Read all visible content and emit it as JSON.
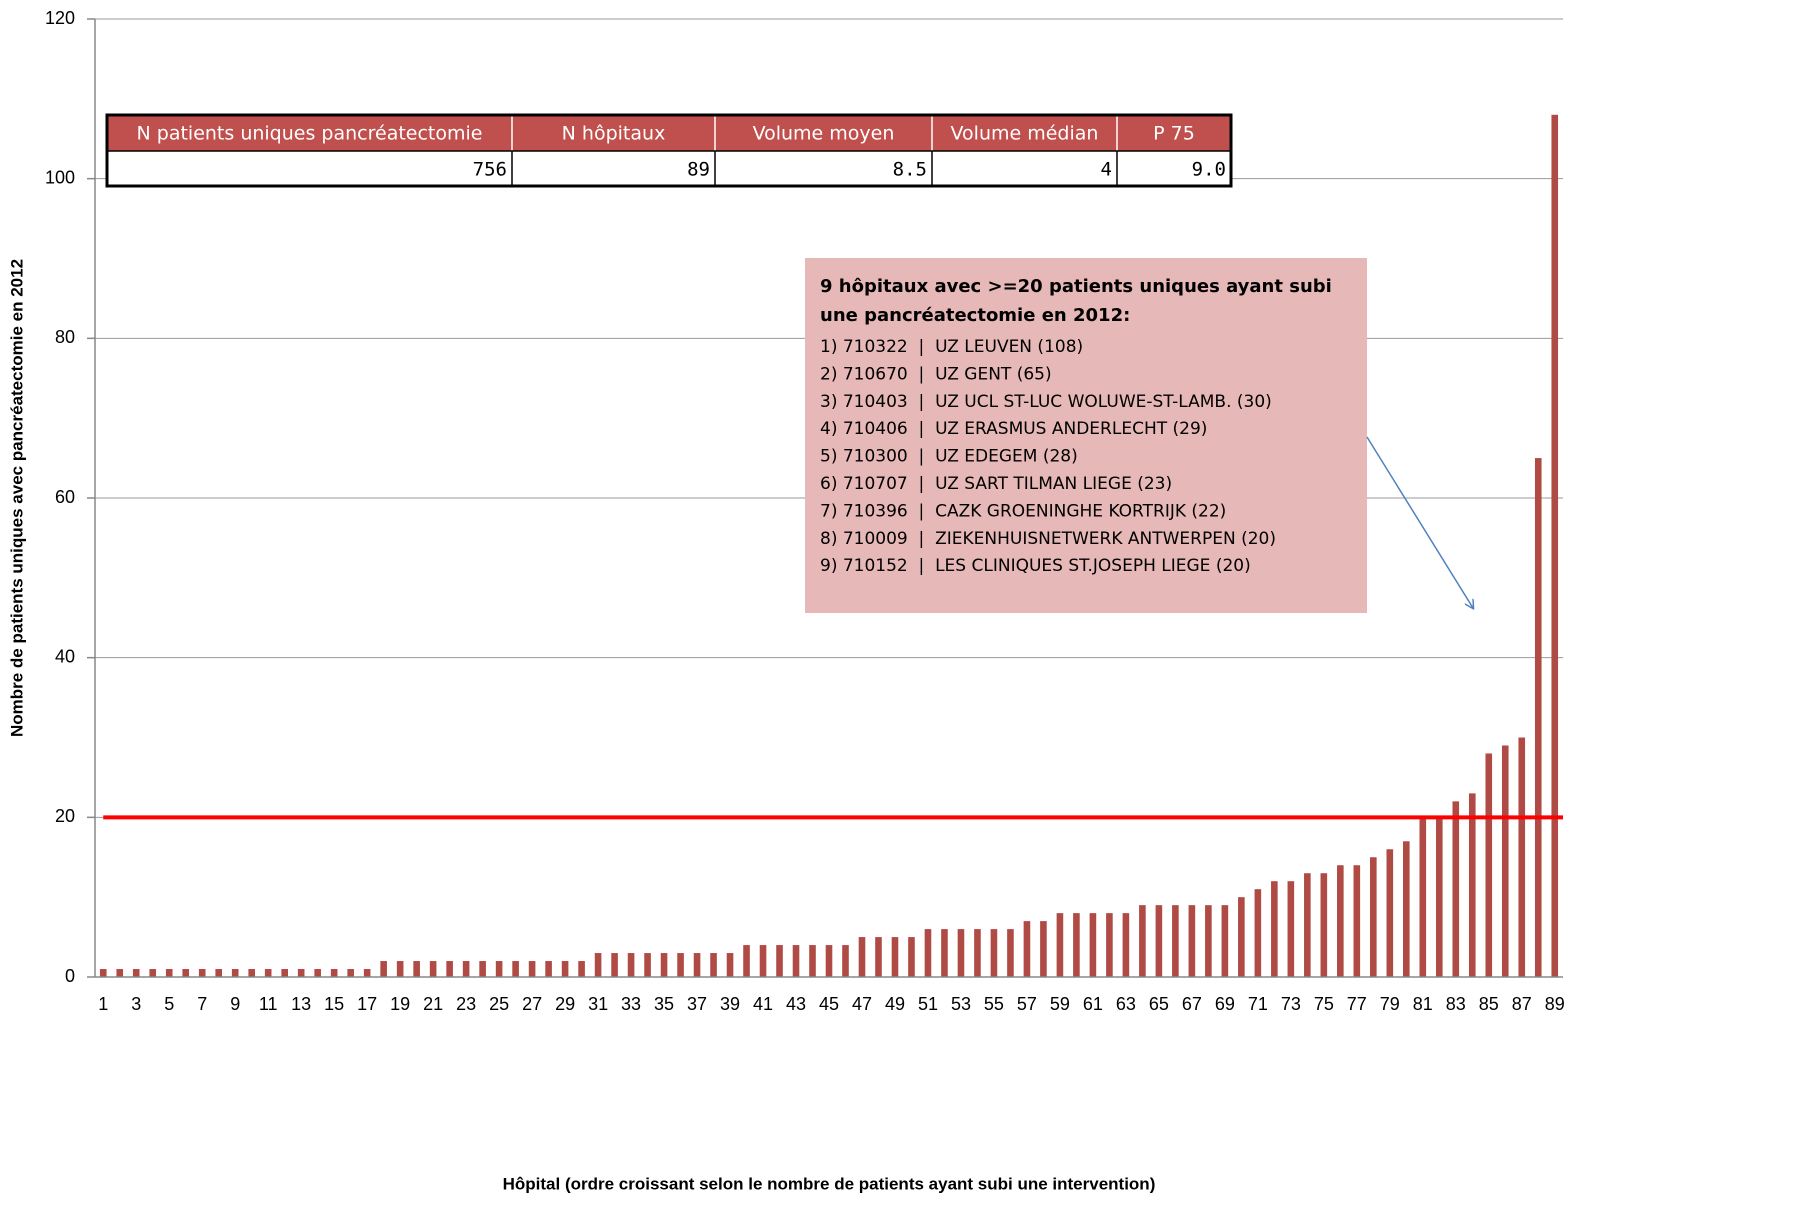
{
  "chart_data": {
    "type": "bar",
    "x_label": "Hôpital (ordre croissant selon le nombre de patients ayant subi une intervention)",
    "y_label": "Nombre de patients uniques avec pancréatectomie en 2012",
    "categories": [
      1,
      null,
      3,
      null,
      5,
      null,
      7,
      null,
      9,
      null,
      11,
      null,
      13,
      null,
      15,
      null,
      17,
      null,
      19,
      null,
      21,
      null,
      23,
      null,
      25,
      null,
      27,
      null,
      29,
      null,
      31,
      null,
      33,
      null,
      35,
      null,
      37,
      null,
      39,
      null,
      41,
      null,
      43,
      null,
      45,
      null,
      47,
      null,
      49,
      null,
      51,
      null,
      53,
      null,
      55,
      null,
      57,
      null,
      59,
      null,
      61,
      null,
      63,
      null,
      65,
      null,
      67,
      null,
      69,
      null,
      71,
      null,
      73,
      null,
      75,
      null,
      77,
      null,
      79,
      null,
      81,
      null,
      83,
      null,
      85,
      null,
      87,
      null,
      89
    ],
    "values": [
      1,
      1,
      1,
      1,
      1,
      1,
      1,
      1,
      1,
      1,
      1,
      1,
      1,
      1,
      1,
      1,
      1,
      2,
      2,
      2,
      2,
      2,
      2,
      2,
      2,
      2,
      2,
      2,
      2,
      2,
      3,
      3,
      3,
      3,
      3,
      3,
      3,
      3,
      3,
      4,
      4,
      4,
      4,
      4,
      4,
      4,
      5,
      5,
      5,
      5,
      6,
      6,
      6,
      6,
      6,
      6,
      7,
      7,
      8,
      8,
      8,
      8,
      8,
      9,
      9,
      9,
      9,
      9,
      9,
      10,
      11,
      12,
      12,
      13,
      13,
      14,
      14,
      15,
      16,
      17,
      20,
      20,
      22,
      23,
      28,
      29,
      30,
      65,
      108
    ],
    "color": "#b04a45",
    "ylim": [
      0,
      120
    ],
    "yticks": [
      0,
      20,
      40,
      60,
      80,
      100,
      120
    ],
    "grid": true,
    "reference_line": {
      "value": 20,
      "color": "#ff0000"
    },
    "table": {
      "header": [
        "N patients uniques pancréatectomie",
        "N hôpitaux",
        "Volume moyen",
        "Volume médian",
        "P 75"
      ],
      "row": [
        "756",
        "89",
        "8.5",
        "4",
        "9.0"
      ]
    },
    "annotation": {
      "title_lines": [
        "9 hôpitaux avec >=20 patients uniques ayant subi",
        "une pancréatectomie en 2012:"
      ],
      "lines": [
        "1) 710322  |  UZ LEUVEN (108)",
        "2) 710670  |  UZ GENT (65)",
        "3) 710403  |  UZ UCL ST-LUC WOLUWE-ST-LAMB. (30)",
        "4) 710406  |  UZ ERASMUS ANDERLECHT (29)",
        "5) 710300  |  UZ EDEGEM (28)",
        "6) 710707  |  UZ SART TILMAN LIEGE (23)",
        "7) 710396  |  CAZK GROENINGHE KORTRIJK (22)",
        "8) 710009  |  ZIEKENHUISNETWERK ANTWERPEN (20)",
        "9) 710152  |  LES CLINIQUES ST.JOSEPH LIEGE (20)"
      ]
    }
  }
}
